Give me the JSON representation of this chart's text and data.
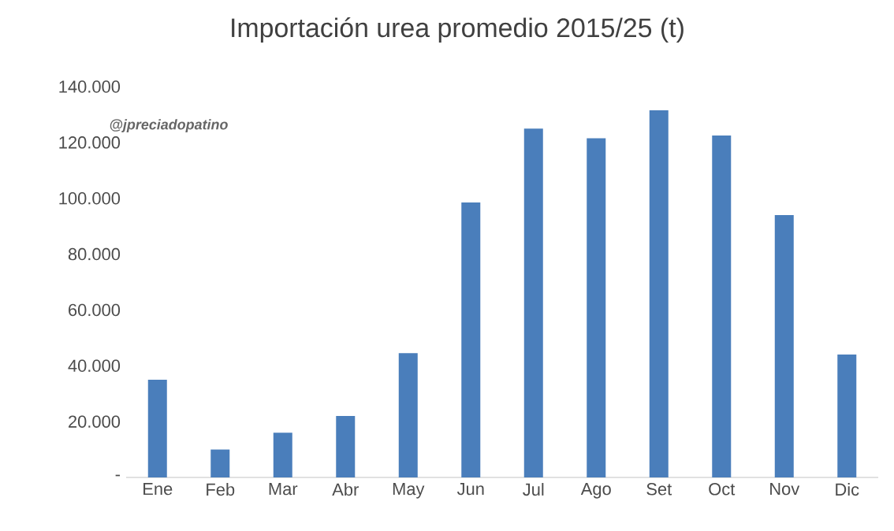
{
  "chart_data": {
    "type": "bar",
    "title": "Importación urea promedio 2015/25 (t)",
    "annotations": [
      "@jpreciadopatino"
    ],
    "categories": [
      "Ene",
      "Feb",
      "Mar",
      "Abr",
      "May",
      "Jun",
      "Jul",
      "Ago",
      "Set",
      "Oct",
      "Nov",
      "Dic"
    ],
    "values": [
      35000,
      10000,
      16000,
      22000,
      44500,
      98500,
      125000,
      121500,
      131500,
      122500,
      94000,
      44000
    ],
    "color": "#4a7ebb",
    "ylim": [
      0,
      140000
    ],
    "yticks": [
      {
        "value": 0,
        "label": "-"
      },
      {
        "value": 20000,
        "label": "20.000"
      },
      {
        "value": 40000,
        "label": "40.000"
      },
      {
        "value": 60000,
        "label": "60.000"
      },
      {
        "value": 80000,
        "label": "80.000"
      },
      {
        "value": 100000,
        "label": "100.000"
      },
      {
        "value": 120000,
        "label": "120.000"
      },
      {
        "value": 140000,
        "label": "140.000"
      }
    ],
    "grid": false
  }
}
